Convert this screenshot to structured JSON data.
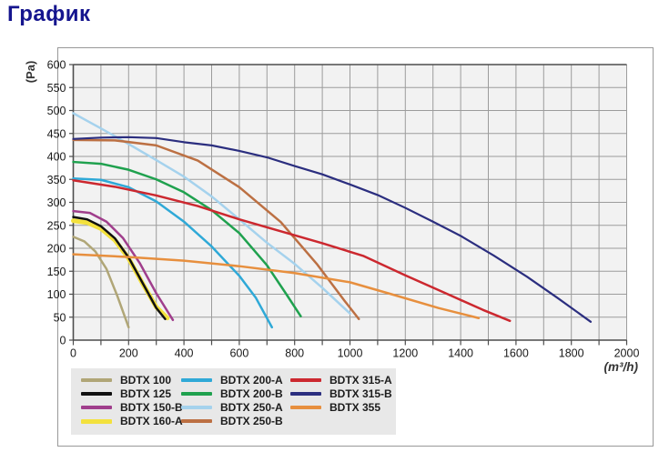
{
  "title": "График",
  "chart_data": {
    "type": "line",
    "title": "",
    "xlabel": "(m³/h)",
    "ylabel": "(Pa)",
    "xlim": [
      0,
      2000
    ],
    "ylim": [
      0,
      600
    ],
    "x_grid_step": 100,
    "x_label_step": 200,
    "y_grid_step": 50,
    "y_label_step": 50,
    "grid": true,
    "plot_bg": "#f2f2f2",
    "grid_color": "#9c9c9c",
    "axis_color": "#4d4d4d",
    "tick_text_color": "#1a1a1a",
    "legend_position": "bottom-left",
    "legend_bg": "#e8e8e8",
    "series": [
      {
        "name": "BDTX 100",
        "color": "#b0a677",
        "width": 2.5,
        "points": [
          [
            0,
            225
          ],
          [
            40,
            215
          ],
          [
            80,
            193
          ],
          [
            120,
            155
          ],
          [
            160,
            95
          ],
          [
            200,
            28
          ]
        ]
      },
      {
        "name": "BDTX 160-A",
        "color": "#f3e13d",
        "width": 5,
        "points": [
          [
            0,
            260
          ],
          [
            50,
            256
          ],
          [
            100,
            243
          ],
          [
            150,
            218
          ],
          [
            200,
            178
          ],
          [
            250,
            124
          ],
          [
            300,
            72
          ],
          [
            340,
            48
          ]
        ]
      },
      {
        "name": "BDTX 125",
        "color": "#101010",
        "width": 2.5,
        "points": [
          [
            0,
            268
          ],
          [
            50,
            263
          ],
          [
            100,
            248
          ],
          [
            150,
            222
          ],
          [
            200,
            180
          ],
          [
            250,
            125
          ],
          [
            300,
            70
          ],
          [
            332,
            46
          ]
        ]
      },
      {
        "name": "BDTX 150-B",
        "color": "#a03e8c",
        "width": 2.5,
        "points": [
          [
            0,
            281
          ],
          [
            60,
            277
          ],
          [
            120,
            258
          ],
          [
            180,
            222
          ],
          [
            240,
            168
          ],
          [
            300,
            102
          ],
          [
            360,
            44
          ]
        ]
      },
      {
        "name": "BDTX 200-A",
        "color": "#2fa9d7",
        "width": 2.5,
        "points": [
          [
            0,
            352
          ],
          [
            100,
            349
          ],
          [
            200,
            333
          ],
          [
            300,
            302
          ],
          [
            400,
            258
          ],
          [
            500,
            204
          ],
          [
            600,
            140
          ],
          [
            660,
            92
          ],
          [
            718,
            28
          ]
        ]
      },
      {
        "name": "BDTX 200-B",
        "color": "#1fa14e",
        "width": 2.5,
        "points": [
          [
            0,
            388
          ],
          [
            100,
            384
          ],
          [
            200,
            371
          ],
          [
            300,
            350
          ],
          [
            400,
            322
          ],
          [
            500,
            283
          ],
          [
            600,
            233
          ],
          [
            700,
            163
          ],
          [
            770,
            100
          ],
          [
            822,
            52
          ]
        ]
      },
      {
        "name": "BDTX 250-A",
        "color": "#a5d2ed",
        "width": 2.5,
        "points": [
          [
            0,
            494
          ],
          [
            100,
            461
          ],
          [
            200,
            427
          ],
          [
            300,
            392
          ],
          [
            400,
            356
          ],
          [
            500,
            313
          ],
          [
            600,
            263
          ],
          [
            700,
            212
          ],
          [
            800,
            166
          ],
          [
            900,
            114
          ],
          [
            1000,
            58
          ]
        ]
      },
      {
        "name": "BDTX 250-B",
        "color": "#bc7043",
        "width": 2.5,
        "points": [
          [
            0,
            436
          ],
          [
            150,
            435
          ],
          [
            300,
            424
          ],
          [
            450,
            391
          ],
          [
            600,
            333
          ],
          [
            750,
            257
          ],
          [
            880,
            166
          ],
          [
            980,
            86
          ],
          [
            1032,
            46
          ]
        ]
      },
      {
        "name": "BDTX 315-A",
        "color": "#cc282f",
        "width": 2.5,
        "points": [
          [
            0,
            348
          ],
          [
            150,
            334
          ],
          [
            300,
            315
          ],
          [
            450,
            292
          ],
          [
            600,
            263
          ],
          [
            750,
            237
          ],
          [
            900,
            211
          ],
          [
            1050,
            183
          ],
          [
            1200,
            141
          ],
          [
            1350,
            101
          ],
          [
            1480,
            66
          ],
          [
            1578,
            42
          ]
        ]
      },
      {
        "name": "BDTX 315-B",
        "color": "#2b2e7f",
        "width": 2.2,
        "points": [
          [
            0,
            438
          ],
          [
            100,
            441
          ],
          [
            200,
            442
          ],
          [
            300,
            440
          ],
          [
            400,
            431
          ],
          [
            500,
            424
          ],
          [
            600,
            412
          ],
          [
            700,
            398
          ],
          [
            800,
            379
          ],
          [
            900,
            361
          ],
          [
            1000,
            339
          ],
          [
            1100,
            316
          ],
          [
            1200,
            288
          ],
          [
            1300,
            258
          ],
          [
            1400,
            227
          ],
          [
            1520,
            184
          ],
          [
            1640,
            138
          ],
          [
            1750,
            92
          ],
          [
            1870,
            40
          ]
        ]
      },
      {
        "name": "BDTX 355",
        "color": "#e78f3e",
        "width": 2.5,
        "points": [
          [
            0,
            187
          ],
          [
            200,
            181
          ],
          [
            400,
            173
          ],
          [
            600,
            161
          ],
          [
            800,
            146
          ],
          [
            1000,
            126
          ],
          [
            1150,
            100
          ],
          [
            1320,
            70
          ],
          [
            1465,
            48
          ]
        ]
      }
    ],
    "legend_columns": [
      [
        "BDTX 100",
        "BDTX 125",
        "BDTX 150-B",
        "BDTX 160-A"
      ],
      [
        "BDTX 200-A",
        "BDTX 200-B",
        "BDTX 250-A",
        "BDTX 250-B"
      ],
      [
        "BDTX 315-A",
        "BDTX 315-B",
        "BDTX 355"
      ]
    ]
  }
}
